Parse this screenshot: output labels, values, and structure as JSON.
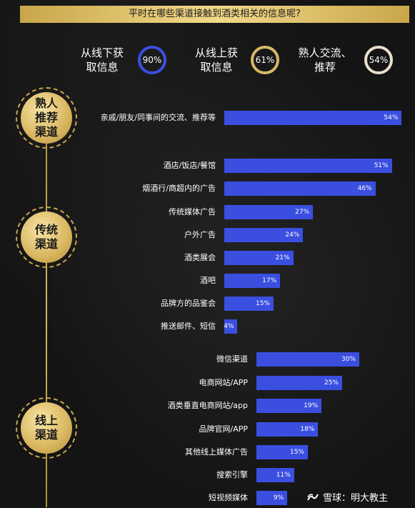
{
  "title": "平时在哪些渠道接触到酒类相关的信息呢?",
  "summary": [
    {
      "label": "从线下获\n取信息",
      "value": "90%"
    },
    {
      "label": "从线上获\n取信息",
      "value": "61%"
    },
    {
      "label": "熟人交流、\n推荐",
      "value": "54%"
    }
  ],
  "groups": [
    {
      "label": "熟人\n推荐\n渠道"
    },
    {
      "label": "传统\n渠道"
    },
    {
      "label": "线上\n渠道"
    }
  ],
  "chart_data": {
    "type": "bar",
    "orientation": "horizontal",
    "title": "平时在哪些渠道接触到酒类相关的信息呢?",
    "xlabel": "",
    "ylabel": "",
    "groups": [
      {
        "name": "熟人推荐渠道",
        "categories": [
          "亲戚/朋友/同事间的交流、推荐等"
        ],
        "values": [
          54
        ],
        "labels": [
          "54%"
        ]
      },
      {
        "name": "传统渠道",
        "categories": [
          "酒店/饭店/餐馆",
          "烟酒行/商超内的广告",
          "传统媒体广告",
          "户外广告",
          "酒类展会",
          "酒吧",
          "品牌方的品鉴会",
          "推送邮件、短信"
        ],
        "values": [
          51,
          46,
          27,
          24,
          21,
          17,
          15,
          4
        ],
        "labels": [
          "51%",
          "46%",
          "27%",
          "24%",
          "21%",
          "17%",
          "15%",
          "4%"
        ]
      },
      {
        "name": "线上渠道",
        "categories": [
          "微信渠道",
          "电商网站/APP",
          "酒类垂直电商网站/app",
          "品牌官网/APP",
          "其他线上媒体广告",
          "搜索引擎",
          "短视频媒体"
        ],
        "values": [
          30,
          25,
          19,
          18,
          15,
          11,
          9
        ],
        "labels": [
          "30%",
          "25%",
          "19%",
          "18%",
          "15%",
          "11%",
          "9%"
        ]
      }
    ],
    "colors": {
      "bar": "#3a4fe0",
      "accent": "#d8b767"
    }
  },
  "watermark": {
    "icon": "snowball-icon",
    "text": "雪球：明大教主"
  }
}
